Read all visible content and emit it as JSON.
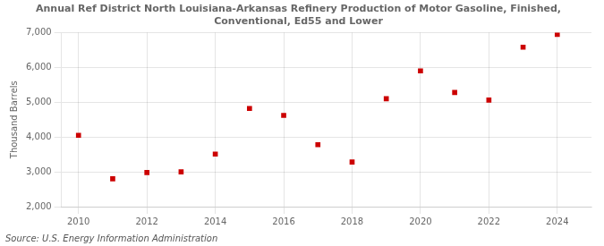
{
  "chart_data": {
    "type": "scatter",
    "title": "Annual Ref District North Louisiana-Arkansas Refinery Production of Motor Gasoline, Finished,\nConventional, Ed55 and Lower",
    "ylabel": "Thousand Barrels",
    "annotations": [
      "Source: U.S. Energy Information Administration"
    ],
    "x": [
      2010,
      2011,
      2012,
      2013,
      2014,
      2015,
      2016,
      2017,
      2018,
      2019,
      2020,
      2021,
      2022,
      2023,
      2024
    ],
    "values": [
      4050,
      2800,
      2980,
      3000,
      3510,
      4820,
      4620,
      3780,
      3280,
      5100,
      5900,
      5280,
      5060,
      6580,
      6950
    ],
    "color": "#cc0000",
    "marker": "square",
    "xlim": [
      2009.5,
      2025
    ],
    "xticks": [
      2010,
      2012,
      2014,
      2016,
      2018,
      2020,
      2022,
      2024
    ],
    "ylim": [
      2000,
      7000
    ],
    "yticks": [
      {
        "value": 2000,
        "label": "2,000"
      },
      {
        "value": 3000,
        "label": "3,000"
      },
      {
        "value": 4000,
        "label": "4,000"
      },
      {
        "value": 5000,
        "label": "5,000"
      },
      {
        "value": 6000,
        "label": "6,000"
      },
      {
        "value": 7000,
        "label": "7,000"
      }
    ],
    "grid": true
  }
}
